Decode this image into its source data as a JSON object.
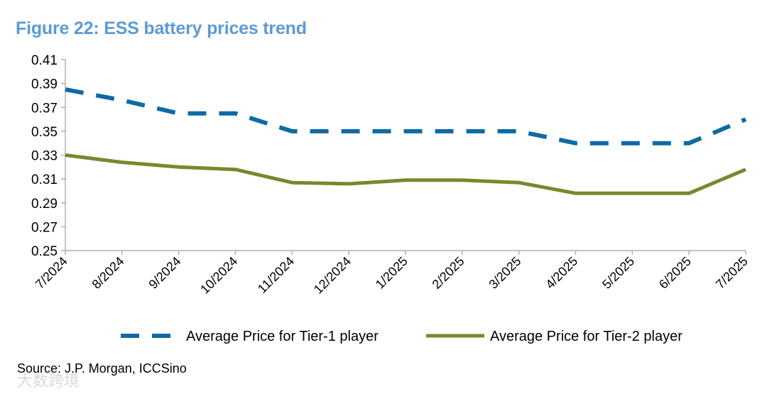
{
  "figure": {
    "title": "Figure 22: ESS battery prices trend",
    "source": "Source: J.P. Morgan, ICCSino",
    "watermark": "大数跨境"
  },
  "colors": {
    "title": "#5b9bd5",
    "tier1": "#0f6aa4",
    "tier2": "#76892f",
    "axis": "#b0b0b0"
  },
  "chart_data": {
    "type": "line",
    "title": "Figure 22: ESS battery prices trend",
    "xlabel": "",
    "ylabel": "",
    "categories": [
      "7/2024",
      "8/2024",
      "9/2024",
      "10/2024",
      "11/2024",
      "12/2024",
      "1/2025",
      "2/2025",
      "3/2025",
      "4/2025",
      "5/2025",
      "6/2025",
      "7/2025"
    ],
    "ylim": [
      0.25,
      0.41
    ],
    "yticks": [
      "0.41",
      "0.39",
      "0.37",
      "0.35",
      "0.33",
      "0.31",
      "0.29",
      "0.27",
      "0.25"
    ],
    "grid": false,
    "legend_position": "bottom",
    "series": [
      {
        "name": "Average Price for Tier-1 player",
        "style": "dashed",
        "values": [
          0.385,
          0.376,
          0.365,
          0.365,
          0.35,
          0.35,
          0.35,
          0.35,
          0.35,
          0.34,
          0.34,
          0.34,
          0.36
        ]
      },
      {
        "name": "Average Price for Tier-2 player",
        "style": "solid",
        "values": [
          0.33,
          0.324,
          0.32,
          0.318,
          0.307,
          0.306,
          0.309,
          0.309,
          0.307,
          0.298,
          0.298,
          0.298,
          0.318
        ]
      }
    ]
  }
}
